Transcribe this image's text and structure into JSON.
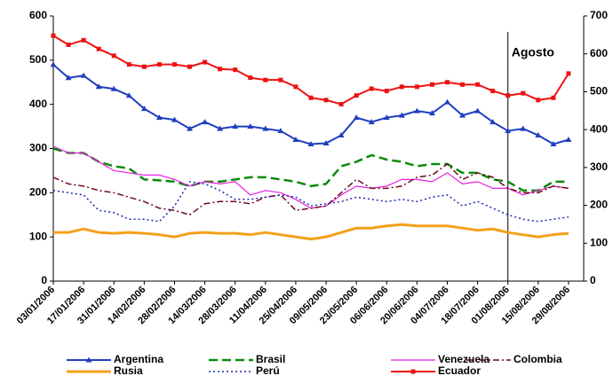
{
  "chart_data": {
    "type": "line",
    "x": [
      "03/01/2006",
      null,
      "17/01/2006",
      null,
      "31/01/2006",
      null,
      "14/02/2006",
      null,
      "28/02/2006",
      null,
      "14/03/2006",
      null,
      "28/03/2006",
      null,
      "11/04/2006",
      null,
      "25/04/2006",
      null,
      "09/05/2006",
      null,
      "23/05/2006",
      null,
      "06/06/2006",
      null,
      "20/06/2006",
      null,
      "04/07/2006",
      null,
      "18/07/2006",
      null,
      "01/08/2006",
      null,
      "15/08/2006",
      null,
      "29/08/2006"
    ],
    "ylim": [
      0,
      600
    ],
    "yticks": [
      0,
      100,
      200,
      300,
      400,
      500,
      600
    ],
    "y2lim": [
      0,
      700
    ],
    "y2ticks": [
      0,
      100,
      200,
      300,
      400,
      500,
      600,
      700
    ],
    "annotations": [
      {
        "text": "Agosto",
        "x": "01/08/2006"
      }
    ],
    "series": [
      {
        "name": "Argentina",
        "color": "#1f3fbf",
        "width": 2,
        "dash": "",
        "marker": "triangle",
        "values": [
          490,
          460,
          465,
          440,
          435,
          420,
          390,
          370,
          365,
          345,
          360,
          345,
          350,
          350,
          345,
          340,
          320,
          310,
          312,
          330,
          370,
          360,
          370,
          375,
          385,
          380,
          405,
          375,
          385,
          360,
          340,
          345,
          330,
          310,
          320
        ]
      },
      {
        "name": "Brasil",
        "color": "#0b8a0b",
        "width": 2.5,
        "dash": "10,5",
        "values": [
          300,
          290,
          290,
          270,
          260,
          255,
          230,
          228,
          225,
          215,
          225,
          225,
          230,
          235,
          235,
          230,
          225,
          215,
          220,
          260,
          270,
          285,
          275,
          270,
          260,
          265,
          265,
          245,
          245,
          230,
          225,
          205,
          205,
          225,
          225
        ]
      },
      {
        "name": "Venezuela",
        "color": "#e81fe0",
        "width": 1.2,
        "dash": "",
        "values": [
          305,
          290,
          290,
          270,
          250,
          245,
          240,
          240,
          230,
          215,
          225,
          220,
          225,
          195,
          205,
          200,
          185,
          165,
          170,
          195,
          215,
          210,
          215,
          230,
          230,
          225,
          245,
          220,
          225,
          210,
          210,
          195,
          205,
          215,
          210
        ]
      },
      {
        "name": "Colombia",
        "color": "#6b0a16",
        "width": 1.5,
        "dash": "7,3,2,3",
        "values": [
          235,
          220,
          215,
          205,
          200,
          190,
          180,
          165,
          160,
          150,
          175,
          180,
          180,
          175,
          190,
          195,
          160,
          165,
          170,
          200,
          230,
          210,
          210,
          215,
          235,
          240,
          265,
          230,
          245,
          235,
          210,
          200,
          200,
          215,
          210
        ]
      },
      {
        "name": "Rusia",
        "color": "#f5a01a",
        "width": 3,
        "dash": "",
        "values": [
          110,
          110,
          118,
          110,
          108,
          110,
          108,
          105,
          100,
          108,
          110,
          108,
          108,
          105,
          110,
          105,
          100,
          95,
          100,
          110,
          120,
          120,
          125,
          128,
          125,
          125,
          125,
          120,
          115,
          118,
          110,
          105,
          100,
          105,
          108
        ]
      },
      {
        "name": "Perú",
        "color": "#1a2ab0",
        "width": 1.5,
        "dash": "2,3",
        "values": [
          205,
          200,
          195,
          160,
          155,
          140,
          140,
          135,
          170,
          225,
          220,
          205,
          185,
          185,
          190,
          195,
          190,
          170,
          175,
          180,
          190,
          185,
          180,
          185,
          180,
          190,
          195,
          170,
          180,
          165,
          150,
          140,
          135,
          140,
          145
        ]
      },
      {
        "name": "Ecuador",
        "color": "#ee1111",
        "width": 2,
        "dash": "",
        "marker": "square",
        "axis": "y2",
        "values": [
          648,
          624,
          636,
          613,
          595,
          572,
          566,
          572,
          572,
          566,
          578,
          560,
          558,
          537,
          531,
          531,
          513,
          484,
          478,
          467,
          490,
          508,
          502,
          513,
          513,
          519,
          525,
          519,
          519,
          502,
          490,
          496,
          478,
          484,
          548
        ]
      }
    ]
  }
}
